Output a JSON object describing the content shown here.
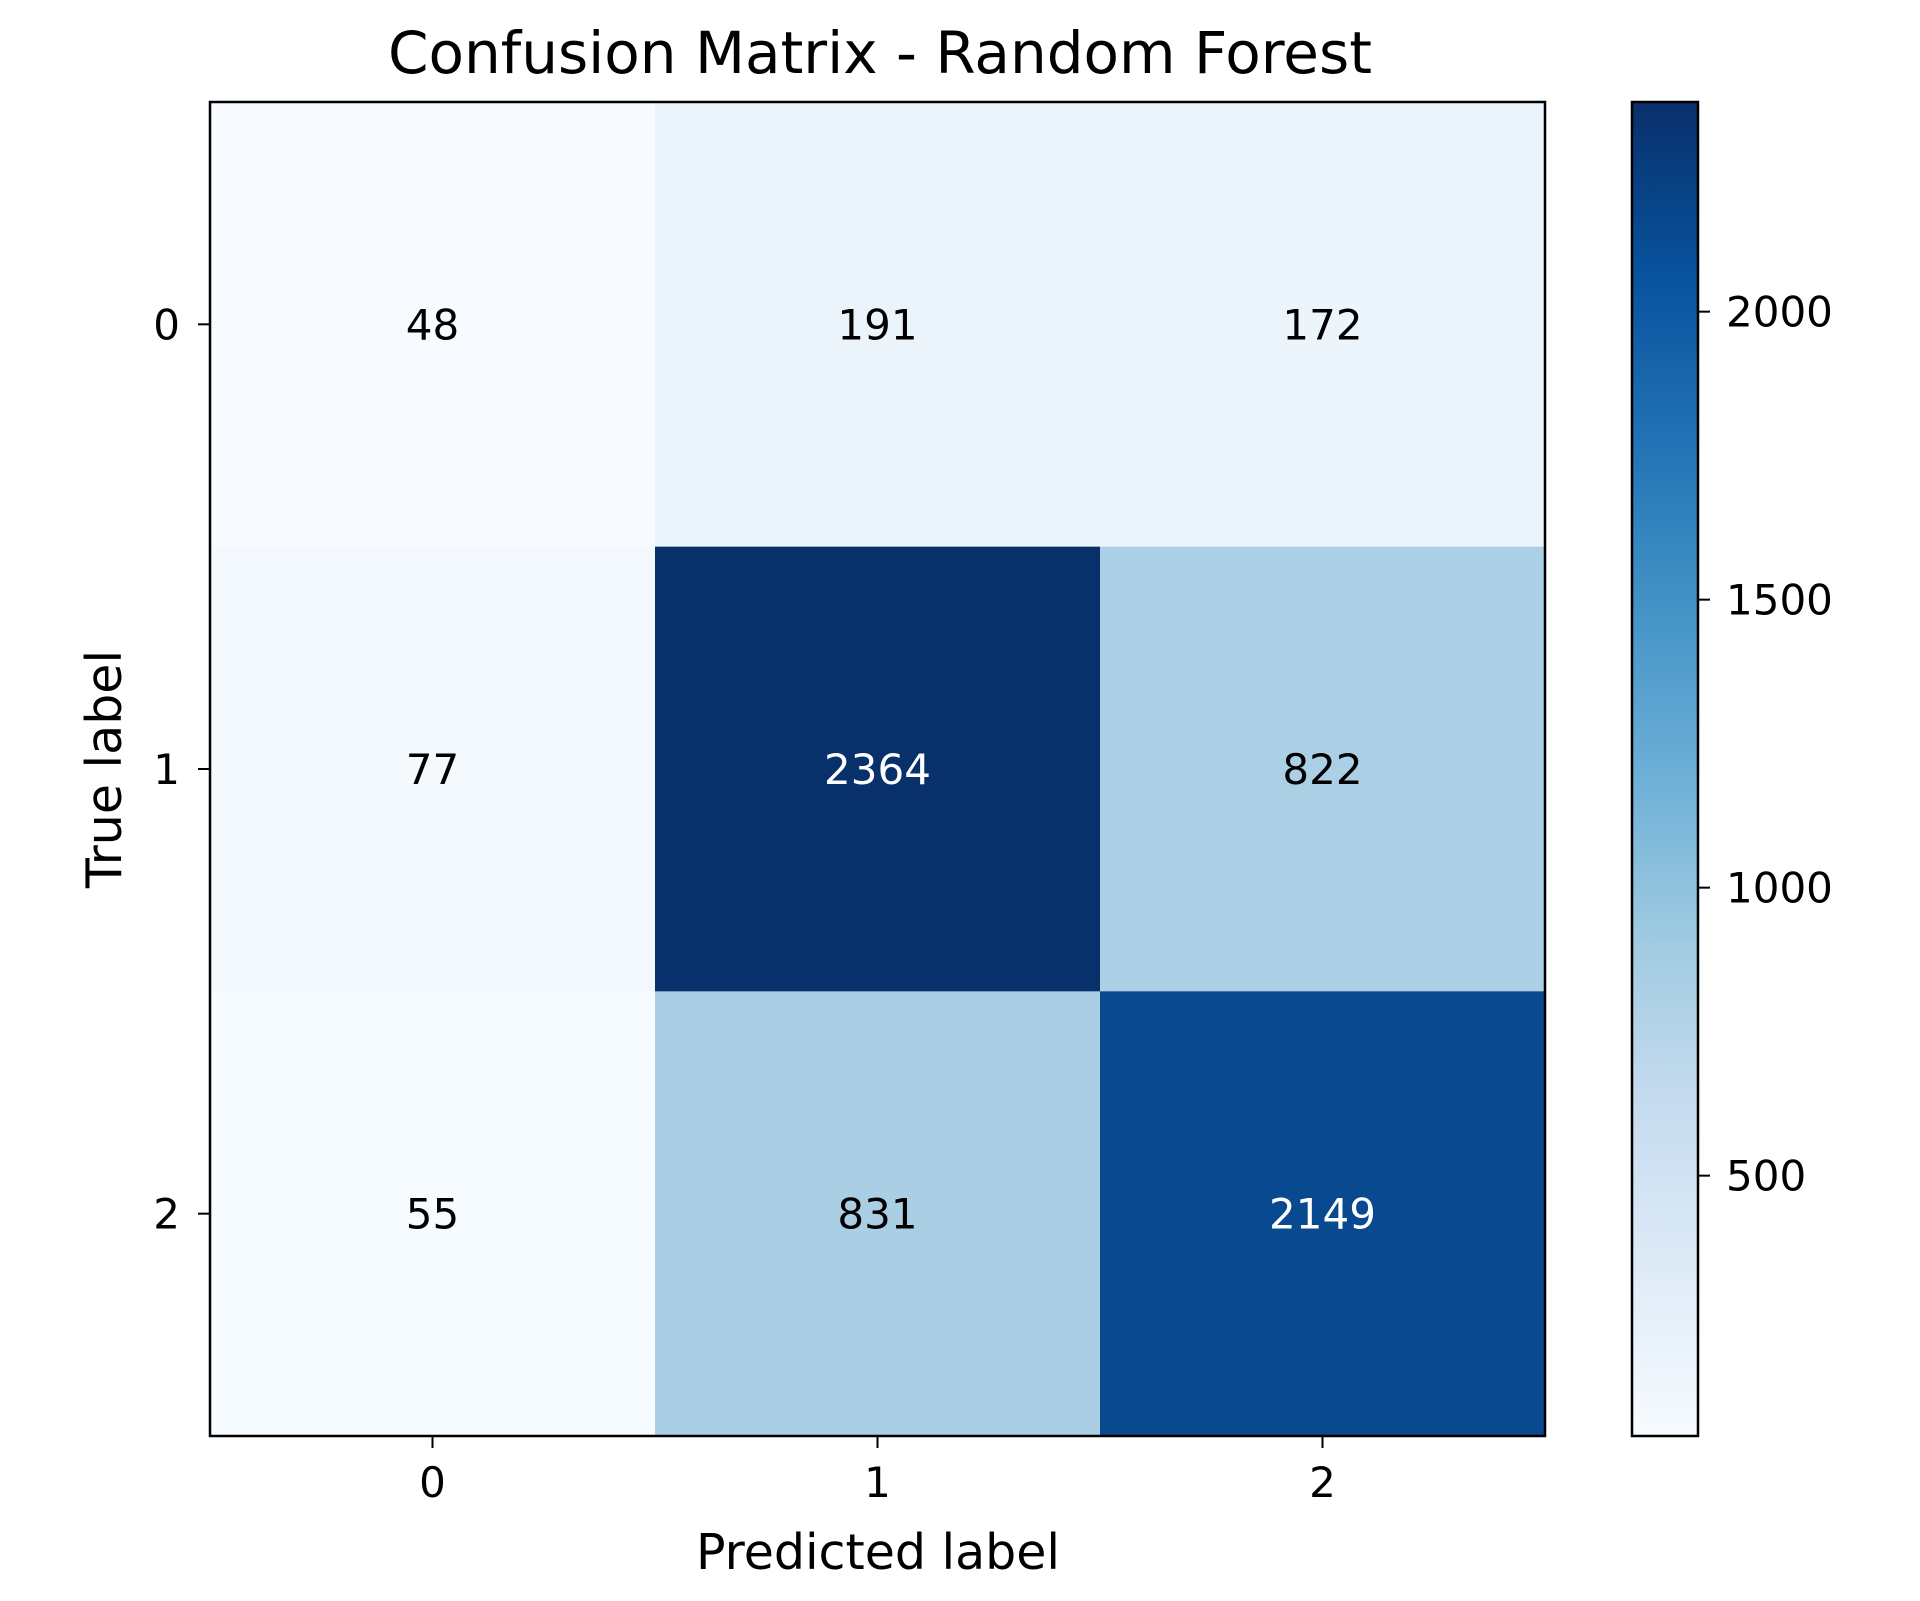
{
  "chart_data": {
    "type": "heatmap",
    "title": "Confusion Matrix - Random Forest",
    "xlabel": "Predicted label",
    "ylabel": "True label",
    "x_categories": [
      "0",
      "1",
      "2"
    ],
    "y_categories": [
      "0",
      "1",
      "2"
    ],
    "matrix": [
      [
        48,
        191,
        172
      ],
      [
        77,
        2364,
        822
      ],
      [
        55,
        831,
        2149
      ]
    ],
    "colormap": "Blues",
    "colorbar": {
      "range": [
        48,
        2364
      ],
      "ticks": [
        500,
        1000,
        1500,
        2000
      ],
      "tick_labels": [
        "500",
        "1000",
        "1500",
        "2000"
      ]
    },
    "grid": false,
    "text_color_dark": "#000000",
    "text_color_light": "#ffffff"
  }
}
